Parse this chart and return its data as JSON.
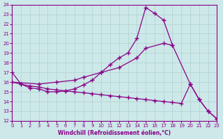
{
  "xlabel": "Windchill (Refroidissement éolien,°C)",
  "background_color": "#cde8e8",
  "line_color": "#880088",
  "grid_color": "#b0d0d0",
  "xmin": 0,
  "xmax": 23,
  "ymin": 12,
  "ymax": 24,
  "xticks": [
    0,
    1,
    2,
    3,
    4,
    5,
    6,
    7,
    8,
    9,
    10,
    11,
    12,
    13,
    14,
    15,
    16,
    17,
    18,
    19,
    20,
    21,
    22,
    23
  ],
  "yticks": [
    12,
    13,
    14,
    15,
    16,
    17,
    18,
    19,
    20,
    21,
    22,
    23,
    24
  ],
  "line1_x": [
    0,
    1,
    2,
    3,
    4,
    5,
    6,
    7,
    8,
    9,
    10,
    11,
    12,
    13,
    14,
    15,
    16,
    17,
    18,
    20,
    21,
    22,
    23
  ],
  "line1_y": [
    17.0,
    15.8,
    15.4,
    15.3,
    15.0,
    15.0,
    15.1,
    15.3,
    15.7,
    16.2,
    17.0,
    17.8,
    18.5,
    19.0,
    20.5,
    23.7,
    23.1,
    22.4,
    19.8,
    15.8,
    14.2,
    13.0,
    12.2
  ],
  "line2_x": [
    0,
    3,
    5,
    7,
    8,
    10,
    12,
    14,
    15,
    17,
    18
  ],
  "line2_y": [
    16.0,
    15.8,
    16.0,
    16.2,
    16.5,
    17.0,
    17.5,
    18.5,
    19.5,
    20.0,
    19.8
  ],
  "line3_x": [
    0,
    1,
    2,
    3,
    4,
    5,
    6,
    7,
    8,
    9,
    10,
    11,
    12,
    13,
    14,
    15,
    16,
    17,
    18,
    19,
    20,
    21,
    22,
    23
  ],
  "line3_y": [
    16.0,
    15.8,
    15.6,
    15.5,
    15.3,
    15.2,
    15.1,
    15.0,
    14.9,
    14.8,
    14.7,
    14.6,
    14.5,
    14.4,
    14.3,
    14.2,
    14.1,
    14.0,
    13.9,
    13.8,
    15.8,
    14.2,
    13.0,
    12.2
  ]
}
